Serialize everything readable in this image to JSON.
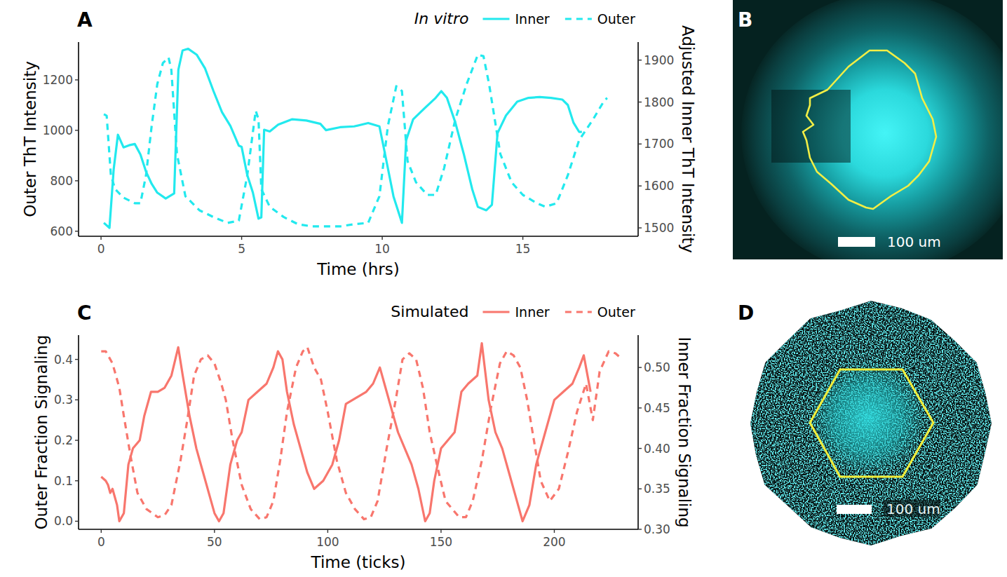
{
  "chart_data": [
    {
      "type": "line",
      "panel": "A",
      "x_label": "Time (hrs)",
      "y_label": "Outer ThT Intensity",
      "y2_label": "Adjusted Inner ThT Intensity",
      "legend_title": "In vitro",
      "legend": "top",
      "grid": false,
      "xlim": [
        -0.8,
        19.1
      ],
      "xticks": [
        0,
        5,
        10,
        15
      ],
      "ylim": [
        580,
        1350
      ],
      "yticks": [
        600,
        800,
        1000,
        1200
      ],
      "y2lim": [
        1480,
        1943
      ],
      "y2ticks": [
        1500,
        1600,
        1700,
        1800,
        1900
      ],
      "series": [
        {
          "name": "Inner",
          "color": "#22e9ee",
          "line_style": "solid",
          "axis": "y2",
          "x": [
            0.1,
            0.3,
            0.45,
            0.6,
            0.8,
            1.0,
            1.2,
            1.4,
            1.6,
            1.8,
            2.0,
            2.3,
            2.6,
            2.75,
            2.9,
            3.1,
            3.4,
            3.7,
            4.0,
            4.3,
            4.6,
            4.9,
            5.0,
            5.2,
            5.4,
            5.6,
            5.7,
            5.8,
            6.0,
            6.3,
            6.8,
            7.3,
            7.8,
            8.0,
            8.5,
            9.0,
            9.5,
            9.9,
            10.1,
            10.4,
            10.7,
            10.85,
            11.1,
            11.5,
            11.9,
            12.1,
            12.3,
            12.6,
            12.9,
            13.2,
            13.4,
            13.7,
            13.9,
            14.1,
            14.4,
            14.8,
            15.2,
            15.6,
            16.0,
            16.4,
            16.6,
            16.8,
            17.0,
            17.1
          ],
          "values": [
            1512,
            1500,
            1640,
            1722,
            1692,
            1697,
            1700,
            1675,
            1634,
            1605,
            1584,
            1570,
            1582,
            1877,
            1923,
            1927,
            1913,
            1880,
            1826,
            1776,
            1743,
            1696,
            1693,
            1626,
            1584,
            1522,
            1525,
            1734,
            1730,
            1746,
            1759,
            1756,
            1748,
            1733,
            1740,
            1742,
            1750,
            1742,
            1676,
            1575,
            1512,
            1709,
            1759,
            1785,
            1810,
            1826,
            1810,
            1751,
            1676,
            1592,
            1550,
            1542,
            1555,
            1726,
            1768,
            1801,
            1810,
            1812,
            1810,
            1806,
            1793,
            1751,
            1729,
            1729
          ]
        },
        {
          "name": "Outer",
          "color": "#22e9ee",
          "line_style": "dashed",
          "axis": "y",
          "x": [
            0.1,
            0.2,
            0.35,
            0.5,
            0.8,
            1.2,
            1.4,
            1.6,
            1.8,
            2.0,
            2.2,
            2.4,
            2.5,
            2.7,
            3.0,
            3.5,
            4.0,
            4.5,
            4.9,
            5.2,
            5.5,
            5.6,
            5.7,
            6.0,
            6.5,
            7.0,
            7.5,
            8.0,
            8.5,
            9.0,
            9.5,
            9.9,
            10.2,
            10.5,
            10.7,
            10.9,
            11.2,
            11.6,
            11.9,
            12.2,
            12.6,
            13.0,
            13.4,
            13.6,
            13.8,
            14.2,
            14.6,
            15.0,
            15.5,
            15.8,
            16.2,
            16.6,
            17.0,
            17.5,
            17.9,
            18.0
          ],
          "values": [
            1064,
            1058,
            822,
            767,
            733,
            711,
            711,
            822,
            1017,
            1183,
            1267,
            1289,
            1240,
            906,
            739,
            683,
            656,
            633,
            642,
            822,
            1078,
            1044,
            767,
            697,
            656,
            628,
            619,
            619,
            619,
            628,
            633,
            739,
            1017,
            1175,
            1156,
            878,
            794,
            744,
            744,
            850,
            1044,
            1183,
            1300,
            1294,
            1183,
            906,
            794,
            744,
            711,
            697,
            711,
            822,
            961,
            1044,
            1119,
            1128
          ]
        }
      ]
    },
    {
      "type": "line",
      "panel": "C",
      "x_label": "Time (ticks)",
      "y_label": "Outer Fraction Signaling",
      "y2_label": "Inner Fraction Signaling",
      "legend_title": "Simulated",
      "legend": "top",
      "grid": false,
      "xlim": [
        -10,
        237
      ],
      "xticks": [
        0,
        50,
        100,
        150,
        200
      ],
      "ylim": [
        -0.02,
        0.46
      ],
      "yticks": [
        {
          "value": 0,
          "label": "0.0"
        },
        0.1,
        0.2,
        0.3,
        0.4
      ],
      "y2lim": [
        0.3,
        0.54
      ],
      "y2ticks": [
        {
          "value": 0.3,
          "label": "0.30"
        },
        0.35,
        {
          "value": 0.4,
          "label": "0.40"
        },
        0.45,
        {
          "value": 0.5,
          "label": "0.50"
        }
      ],
      "series": [
        {
          "name": "Inner",
          "color": "#f8766d",
          "line_style": "solid",
          "axis": "y2",
          "x": [
            0,
            2,
            3,
            4,
            5,
            7,
            8,
            10,
            12,
            14,
            17,
            19,
            22,
            25,
            28,
            31,
            34,
            36,
            39,
            42,
            45,
            48,
            50,
            52,
            54,
            57,
            60,
            62,
            65,
            69,
            73,
            76,
            78,
            80,
            82,
            85,
            88,
            91,
            94,
            96,
            98,
            100,
            102,
            105,
            108,
            111,
            114,
            117,
            120,
            123,
            125,
            128,
            131,
            134,
            137,
            140,
            143,
            145,
            147,
            150,
            153,
            156,
            159,
            162,
            166,
            168,
            171,
            174,
            177,
            180,
            183,
            186,
            189,
            192,
            196,
            200,
            204,
            208,
            211,
            213,
            216
          ],
          "values": [
            0.365,
            0.36,
            0.355,
            0.345,
            0.35,
            0.33,
            0.31,
            0.32,
            0.38,
            0.4,
            0.41,
            0.44,
            0.47,
            0.47,
            0.475,
            0.49,
            0.525,
            0.49,
            0.44,
            0.4,
            0.37,
            0.34,
            0.32,
            0.31,
            0.32,
            0.38,
            0.41,
            0.42,
            0.46,
            0.47,
            0.48,
            0.5,
            0.52,
            0.51,
            0.47,
            0.43,
            0.4,
            0.37,
            0.35,
            0.355,
            0.36,
            0.37,
            0.38,
            0.41,
            0.455,
            0.46,
            0.465,
            0.47,
            0.48,
            0.5,
            0.48,
            0.45,
            0.42,
            0.4,
            0.38,
            0.35,
            0.31,
            0.32,
            0.36,
            0.4,
            0.41,
            0.42,
            0.47,
            0.48,
            0.49,
            0.53,
            0.46,
            0.42,
            0.4,
            0.37,
            0.34,
            0.31,
            0.33,
            0.38,
            0.42,
            0.46,
            0.47,
            0.48,
            0.5,
            0.515,
            0.47
          ]
        },
        {
          "name": "Outer",
          "color": "#f8766d",
          "line_style": "dashed",
          "axis": "y",
          "x": [
            0,
            2,
            5,
            8,
            10,
            13,
            16,
            20,
            25,
            28,
            31,
            35,
            38,
            41,
            44,
            47,
            50,
            53,
            55,
            58,
            62,
            66,
            70,
            73,
            76,
            79,
            82,
            86,
            89,
            91,
            94,
            97,
            100,
            104,
            108,
            112,
            116,
            119,
            122,
            126,
            130,
            133,
            136,
            139,
            142,
            145,
            149,
            152,
            155,
            158,
            161,
            164,
            168,
            172,
            176,
            179,
            182,
            185,
            188,
            191,
            194,
            198,
            202,
            206,
            210,
            214,
            217,
            220,
            224,
            227,
            230
          ],
          "values": [
            0.42,
            0.42,
            0.39,
            0.33,
            0.26,
            0.16,
            0.07,
            0.03,
            0.01,
            0.015,
            0.04,
            0.15,
            0.25,
            0.36,
            0.4,
            0.41,
            0.39,
            0.34,
            0.3,
            0.2,
            0.09,
            0.03,
            0.005,
            0.01,
            0.05,
            0.15,
            0.27,
            0.38,
            0.42,
            0.43,
            0.38,
            0.35,
            0.27,
            0.15,
            0.07,
            0.03,
            0.005,
            0.01,
            0.05,
            0.18,
            0.3,
            0.4,
            0.415,
            0.4,
            0.33,
            0.22,
            0.12,
            0.05,
            0.03,
            0.01,
            0.01,
            0.05,
            0.15,
            0.28,
            0.39,
            0.42,
            0.41,
            0.38,
            0.3,
            0.2,
            0.1,
            0.05,
            0.08,
            0.17,
            0.27,
            0.34,
            0.25,
            0.37,
            0.42,
            0.415,
            0.4
          ]
        }
      ]
    }
  ],
  "images": [
    {
      "panel": "B",
      "scale_label": "100 um"
    },
    {
      "panel": "D",
      "scale_label": "100 um"
    }
  ]
}
